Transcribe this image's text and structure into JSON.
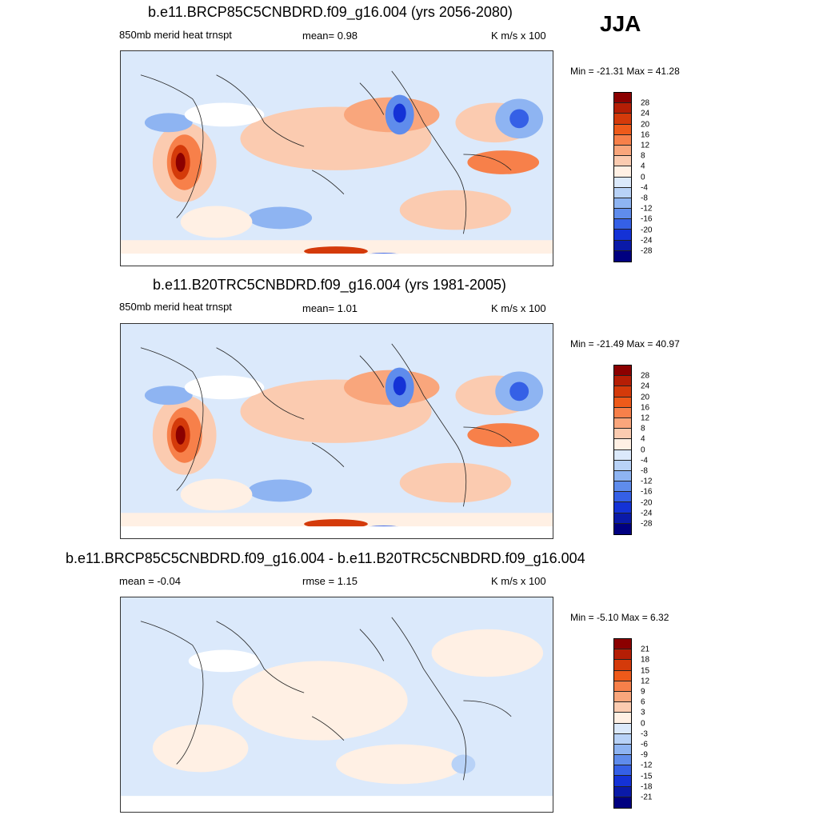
{
  "season": "JJA",
  "panels": [
    {
      "title": "b.e11.BRCP85C5CNBDRD.f09_g16.004 (yrs 2056-2080)",
      "left_label": "850mb merid heat trnspt",
      "center_label": "mean=   0.98",
      "units": "K m/s x 100",
      "minmax": "Min = -21.31 Max =  41.28",
      "colorbar": {
        "colors": [
          "#8b0000",
          "#b51e05",
          "#d43a0a",
          "#ee5a1a",
          "#f7804a",
          "#f9a67c",
          "#fbcbb0",
          "#fff0e4",
          "#dbe9fb",
          "#b8d2f7",
          "#8eb4f2",
          "#5f8cec",
          "#3560e6",
          "#1432d6",
          "#0a1aa8",
          "#000080"
        ],
        "ticks": [
          "28",
          "24",
          "20",
          "16",
          "12",
          "8",
          "4",
          "0",
          "-4",
          "-8",
          "-12",
          "-16",
          "-20",
          "-24",
          "-28"
        ]
      }
    },
    {
      "title": "b.e11.B20TRC5CNBDRD.f09_g16.004 (yrs 1981-2005)",
      "left_label": "850mb merid heat trnspt",
      "center_label": "mean=   1.01",
      "units": "K m/s x 100",
      "minmax": "Min = -21.49 Max =  40.97",
      "colorbar": {
        "colors": [
          "#8b0000",
          "#b51e05",
          "#d43a0a",
          "#ee5a1a",
          "#f7804a",
          "#f9a67c",
          "#fbcbb0",
          "#fff0e4",
          "#dbe9fb",
          "#b8d2f7",
          "#8eb4f2",
          "#5f8cec",
          "#3560e6",
          "#1432d6",
          "#0a1aa8",
          "#000080"
        ],
        "ticks": [
          "28",
          "24",
          "20",
          "16",
          "12",
          "8",
          "4",
          "0",
          "-4",
          "-8",
          "-12",
          "-16",
          "-20",
          "-24",
          "-28"
        ]
      }
    },
    {
      "title": "b.e11.BRCP85C5CNBDRD.f09_g16.004 - b.e11.B20TRC5CNBDRD.f09_g16.004",
      "left_label": "mean =  -0.04",
      "center_label": "rmse =   1.15",
      "units": "K m/s x 100",
      "minmax": "Min =  -5.10 Max =   6.32",
      "colorbar": {
        "colors": [
          "#8b0000",
          "#b51e05",
          "#d43a0a",
          "#ee5a1a",
          "#f7804a",
          "#f9a67c",
          "#fbcbb0",
          "#fff0e4",
          "#dbe9fb",
          "#b8d2f7",
          "#8eb4f2",
          "#5f8cec",
          "#3560e6",
          "#1432d6",
          "#0a1aa8",
          "#000080"
        ],
        "ticks": [
          "21",
          "18",
          "15",
          "12",
          "9",
          "6",
          "3",
          "0",
          "-3",
          "-6",
          "-9",
          "-12",
          "-15",
          "-18",
          "-21"
        ]
      }
    }
  ]
}
